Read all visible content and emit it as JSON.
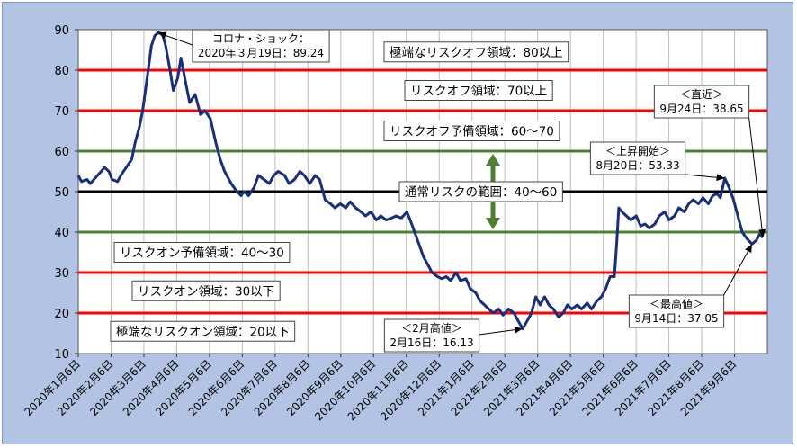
{
  "chart_data": {
    "type": "line",
    "title": "",
    "xlabel": "",
    "ylabel": "",
    "ylim": [
      10,
      90
    ],
    "yticks": [
      "10",
      "20",
      "30",
      "40",
      "50",
      "60",
      "70",
      "80",
      "90"
    ],
    "x_tick_labels": [
      "2020年1月6日",
      "2020年2月6日",
      "2020年3月6日",
      "2020年4月6日",
      "2020年5月6日",
      "2020年6月6日",
      "2020年7月6日",
      "2020年8月6日",
      "2020年9月6日",
      "2020年10月6日",
      "2020年11月6日",
      "2020年12月6日",
      "2021年1月6日",
      "2021年2月6日",
      "2021年3月6日",
      "2021年4月6日",
      "2021年5月6日",
      "2021年6月6日",
      "2021年7月6日",
      "2021年8月6日",
      "2021年9月6日"
    ],
    "x_range": [
      "2020-01-06",
      "2021-09-28"
    ],
    "grid": "vertical",
    "reference_lines": [
      {
        "y": 80,
        "color": "#ff0000"
      },
      {
        "y": 70,
        "color": "#ff0000"
      },
      {
        "y": 60,
        "color": "#4e7f32"
      },
      {
        "y": 50,
        "color": "#000000"
      },
      {
        "y": 40,
        "color": "#4e7f32"
      },
      {
        "y": 30,
        "color": "#ff0000"
      },
      {
        "y": 20,
        "color": "#ff0000"
      }
    ],
    "zone_labels": [
      {
        "text": "極端なリスクオフ領域：80以上",
        "y": 84.5
      },
      {
        "text": "リスクオフ領域：70以上",
        "y": 75
      },
      {
        "text": "リスクオフ予備領域：60～70",
        "y": 65
      },
      {
        "text": "通常リスクの範囲：40～60",
        "y": 50
      },
      {
        "text": "リスクオン予備領域：40～30",
        "y": 35
      },
      {
        "text": "リスクオン領域：30以下",
        "y": 25.5
      },
      {
        "text": "極端なリスクオン領域：20以下",
        "y": 15.5
      }
    ],
    "annotations": [
      {
        "line1": "コロナ・ショック：",
        "line2": "2020年３月19日：89.24",
        "x": "2020-03-19",
        "y": 89.24
      },
      {
        "line1": "＜2月高値＞",
        "line2": "2月16日：16.13",
        "x": "2021-02-16",
        "y": 16.13
      },
      {
        "line1": "＜直近＞",
        "line2": "9月24日：38.65",
        "x": "2021-09-24",
        "y": 38.65
      },
      {
        "line1": "＜上昇開始＞",
        "line2": "8月20日：53.33",
        "x": "2021-08-20",
        "y": 53.33
      },
      {
        "line1": "＜最高値＞",
        "line2": "9月14日：37.05",
        "x": "2021-09-14",
        "y": 37.05
      }
    ],
    "series": [
      {
        "color": "#1a2f7a",
        "points": [
          [
            "2020-01-06",
            54
          ],
          [
            "2020-01-09",
            52.5
          ],
          [
            "2020-01-14",
            53
          ],
          [
            "2020-01-17",
            52
          ],
          [
            "2020-01-22",
            53.5
          ],
          [
            "2020-01-27",
            55
          ],
          [
            "2020-01-30",
            56
          ],
          [
            "2020-02-03",
            55
          ],
          [
            "2020-02-06",
            53
          ],
          [
            "2020-02-11",
            52.5
          ],
          [
            "2020-02-14",
            54
          ],
          [
            "2020-02-19",
            56
          ],
          [
            "2020-02-24",
            58
          ],
          [
            "2020-02-27",
            62
          ],
          [
            "2020-03-02",
            66
          ],
          [
            "2020-03-05",
            70
          ],
          [
            "2020-03-09",
            78
          ],
          [
            "2020-03-11",
            82
          ],
          [
            "2020-03-13",
            86
          ],
          [
            "2020-03-16",
            88.5
          ],
          [
            "2020-03-19",
            89.24
          ],
          [
            "2020-03-23",
            89
          ],
          [
            "2020-03-26",
            86
          ],
          [
            "2020-03-30",
            80
          ],
          [
            "2020-04-02",
            75
          ],
          [
            "2020-04-06",
            78
          ],
          [
            "2020-04-09",
            83
          ],
          [
            "2020-04-14",
            76
          ],
          [
            "2020-04-17",
            72
          ],
          [
            "2020-04-22",
            74
          ],
          [
            "2020-04-27",
            69
          ],
          [
            "2020-05-01",
            70
          ],
          [
            "2020-05-06",
            68
          ],
          [
            "2020-05-11",
            62
          ],
          [
            "2020-05-15",
            58
          ],
          [
            "2020-05-19",
            55
          ],
          [
            "2020-05-25",
            52
          ],
          [
            "2020-05-29",
            50.5
          ],
          [
            "2020-06-03",
            49
          ],
          [
            "2020-06-06",
            50
          ],
          [
            "2020-06-10",
            49
          ],
          [
            "2020-06-15",
            51
          ],
          [
            "2020-06-19",
            54
          ],
          [
            "2020-06-24",
            53
          ],
          [
            "2020-06-29",
            52
          ],
          [
            "2020-07-03",
            54
          ],
          [
            "2020-07-07",
            55
          ],
          [
            "2020-07-13",
            54
          ],
          [
            "2020-07-17",
            52
          ],
          [
            "2020-07-22",
            53
          ],
          [
            "2020-07-27",
            55
          ],
          [
            "2020-07-31",
            54
          ],
          [
            "2020-08-05",
            52
          ],
          [
            "2020-08-10",
            54
          ],
          [
            "2020-08-14",
            53
          ],
          [
            "2020-08-19",
            48
          ],
          [
            "2020-08-24",
            47
          ],
          [
            "2020-08-28",
            46
          ],
          [
            "2020-09-02",
            47
          ],
          [
            "2020-09-07",
            46
          ],
          [
            "2020-09-11",
            47.5
          ],
          [
            "2020-09-16",
            46
          ],
          [
            "2020-09-21",
            45
          ],
          [
            "2020-09-25",
            44
          ],
          [
            "2020-09-30",
            45
          ],
          [
            "2020-10-05",
            43
          ],
          [
            "2020-10-09",
            44
          ],
          [
            "2020-10-14",
            43
          ],
          [
            "2020-10-19",
            43.5
          ],
          [
            "2020-10-23",
            44
          ],
          [
            "2020-10-28",
            43.5
          ],
          [
            "2020-11-02",
            45
          ],
          [
            "2020-11-05",
            43
          ],
          [
            "2020-11-09",
            40
          ],
          [
            "2020-11-13",
            37
          ],
          [
            "2020-11-17",
            34
          ],
          [
            "2020-11-21",
            32
          ],
          [
            "2020-11-25",
            30
          ],
          [
            "2020-11-30",
            29
          ],
          [
            "2020-12-04",
            28.5
          ],
          [
            "2020-12-08",
            29
          ],
          [
            "2020-12-12",
            28
          ],
          [
            "2020-12-17",
            30
          ],
          [
            "2020-12-21",
            28
          ],
          [
            "2020-12-26",
            28.5
          ],
          [
            "2020-12-30",
            26
          ],
          [
            "2021-01-04",
            25
          ],
          [
            "2021-01-08",
            23
          ],
          [
            "2021-01-12",
            22
          ],
          [
            "2021-01-16",
            21
          ],
          [
            "2021-01-20",
            20
          ],
          [
            "2021-01-25",
            21
          ],
          [
            "2021-01-29",
            19.5
          ],
          [
            "2021-02-03",
            21
          ],
          [
            "2021-02-08",
            20
          ],
          [
            "2021-02-12",
            18
          ],
          [
            "2021-02-16",
            16.13
          ],
          [
            "2021-02-20",
            18
          ],
          [
            "2021-02-24",
            20
          ],
          [
            "2021-02-28",
            24
          ],
          [
            "2021-03-04",
            22
          ],
          [
            "2021-03-08",
            24
          ],
          [
            "2021-03-12",
            22
          ],
          [
            "2021-03-16",
            21
          ],
          [
            "2021-03-21",
            19
          ],
          [
            "2021-03-25",
            20
          ],
          [
            "2021-03-29",
            22
          ],
          [
            "2021-04-02",
            21
          ],
          [
            "2021-04-07",
            22
          ],
          [
            "2021-04-11",
            21
          ],
          [
            "2021-04-16",
            22.5
          ],
          [
            "2021-04-20",
            21
          ],
          [
            "2021-04-25",
            23
          ],
          [
            "2021-04-29",
            24
          ],
          [
            "2021-05-03",
            26
          ],
          [
            "2021-05-07",
            29
          ],
          [
            "2021-05-11",
            29
          ],
          [
            "2021-05-13",
            37
          ],
          [
            "2021-05-15",
            46
          ],
          [
            "2021-05-18",
            45
          ],
          [
            "2021-05-22",
            44
          ],
          [
            "2021-05-26",
            43
          ],
          [
            "2021-05-31",
            44
          ],
          [
            "2021-06-04",
            41.5
          ],
          [
            "2021-06-08",
            42
          ],
          [
            "2021-06-12",
            41
          ],
          [
            "2021-06-17",
            42
          ],
          [
            "2021-06-21",
            44
          ],
          [
            "2021-06-26",
            45
          ],
          [
            "2021-06-30",
            43
          ],
          [
            "2021-07-05",
            44
          ],
          [
            "2021-07-09",
            46
          ],
          [
            "2021-07-14",
            45
          ],
          [
            "2021-07-18",
            47
          ],
          [
            "2021-07-22",
            48
          ],
          [
            "2021-07-27",
            47
          ],
          [
            "2021-07-31",
            48.5
          ],
          [
            "2021-08-05",
            47
          ],
          [
            "2021-08-09",
            49
          ],
          [
            "2021-08-13",
            49.5
          ],
          [
            "2021-08-16",
            48.5
          ],
          [
            "2021-08-20",
            53.33
          ],
          [
            "2021-08-24",
            51
          ],
          [
            "2021-08-28",
            48
          ],
          [
            "2021-09-01",
            44
          ],
          [
            "2021-09-05",
            40
          ],
          [
            "2021-09-09",
            38.5
          ],
          [
            "2021-09-14",
            37.05
          ],
          [
            "2021-09-18",
            38
          ],
          [
            "2021-09-21",
            39.5
          ],
          [
            "2021-09-24",
            38.65
          ]
        ]
      }
    ]
  }
}
